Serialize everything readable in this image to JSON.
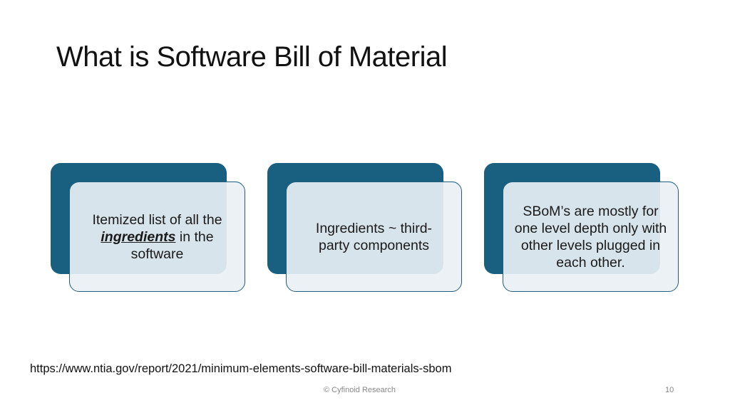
{
  "slide": {
    "title": "What is Software Bill of Material",
    "cards": [
      {
        "pre": "Itemized list of all the ",
        "emphasis": "ingredients",
        "post": " in the software"
      },
      {
        "text": "Ingredients ~ third-party components"
      },
      {
        "text": "SBoM’s are mostly for one level depth only with other levels plugged in each other."
      }
    ],
    "source_url": "https://www.ntia.gov/report/2021/minimum-elements-software-bill-materials-sbom",
    "footer": "© Cyfinoid Research",
    "page_number": "10"
  },
  "colors": {
    "accent": "#185f80",
    "card_fill": "#e9f0f4"
  }
}
